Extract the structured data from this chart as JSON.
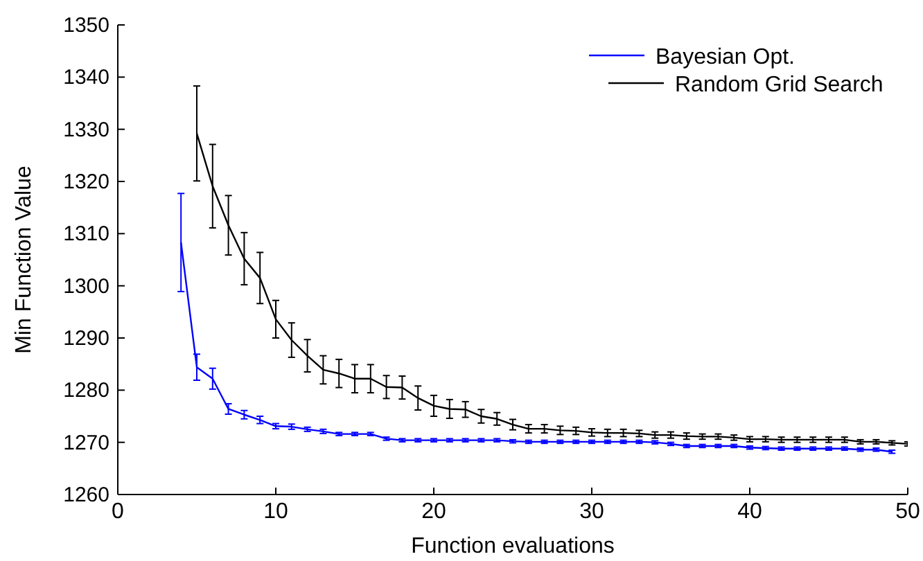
{
  "chart_data": {
    "type": "line",
    "xlabel": "Function evaluations",
    "ylabel": "Min Function Value",
    "xlim": [
      0,
      50
    ],
    "xticks": [
      0,
      10,
      20,
      30,
      40,
      50
    ],
    "ylim": [
      1260,
      1350
    ],
    "yticks": [
      1260,
      1270,
      1280,
      1290,
      1300,
      1310,
      1320,
      1330,
      1340,
      1350
    ],
    "grid": false,
    "legend": "top right",
    "marker": "none",
    "line_style": "solid",
    "series": [
      {
        "name": "Bayesian Opt.",
        "color": "#0000ff",
        "x": [
          4,
          5,
          6,
          7,
          8,
          9,
          10,
          11,
          12,
          13,
          14,
          15,
          16,
          17,
          18,
          19,
          20,
          21,
          22,
          23,
          24,
          25,
          26,
          27,
          28,
          29,
          30,
          31,
          32,
          33,
          34,
          35,
          36,
          37,
          38,
          39,
          40,
          41,
          42,
          43,
          44,
          45,
          46,
          47,
          48,
          49
        ],
        "values": [
          1308.3,
          1284.4,
          1282.2,
          1276.4,
          1275.3,
          1274.3,
          1273.1,
          1273.0,
          1272.5,
          1272.1,
          1271.6,
          1271.6,
          1271.6,
          1270.7,
          1270.4,
          1270.4,
          1270.4,
          1270.4,
          1270.4,
          1270.4,
          1270.4,
          1270.2,
          1270.1,
          1270.1,
          1270.1,
          1270.1,
          1270.1,
          1270.1,
          1270.1,
          1270.1,
          1270.0,
          1269.7,
          1269.3,
          1269.3,
          1269.3,
          1269.3,
          1269.0,
          1268.9,
          1268.8,
          1268.8,
          1268.8,
          1268.8,
          1268.8,
          1268.6,
          1268.6,
          1268.2
        ],
        "errors": [
          9.4,
          2.5,
          2,
          1,
          0.8,
          0.7,
          0.5,
          0.5,
          0.4,
          0.4,
          0.3,
          0.3,
          0.3,
          0.3,
          0.3,
          0.3,
          0.3,
          0.3,
          0.3,
          0.3,
          0.3,
          0.3,
          0.3,
          0.3,
          0.3,
          0.3,
          0.3,
          0.3,
          0.3,
          0.3,
          0.3,
          0.3,
          0.3,
          0.3,
          0.3,
          0.3,
          0.3,
          0.3,
          0.3,
          0.3,
          0.3,
          0.3,
          0.3,
          0.3,
          0.3,
          0.3
        ]
      },
      {
        "name": "Random Grid Search",
        "color": "#000000",
        "x": [
          5,
          6,
          7,
          8,
          9,
          10,
          11,
          12,
          13,
          14,
          15,
          16,
          17,
          18,
          19,
          20,
          21,
          22,
          23,
          24,
          25,
          26,
          27,
          28,
          29,
          30,
          31,
          32,
          33,
          34,
          35,
          36,
          37,
          38,
          39,
          40,
          41,
          42,
          43,
          44,
          45,
          46,
          47,
          48,
          49,
          50
        ],
        "values": [
          1329.2,
          1319.1,
          1311.6,
          1305.2,
          1301.5,
          1293.6,
          1289.6,
          1286.6,
          1283.9,
          1283.2,
          1282.2,
          1282.2,
          1280.6,
          1280.5,
          1278.5,
          1277.0,
          1276.4,
          1276.3,
          1275.0,
          1274.5,
          1273.4,
          1272.6,
          1272.6,
          1272.3,
          1272.2,
          1271.9,
          1271.8,
          1271.8,
          1271.7,
          1271.4,
          1271.4,
          1271.2,
          1271.1,
          1271.1,
          1270.9,
          1270.6,
          1270.6,
          1270.5,
          1270.5,
          1270.5,
          1270.5,
          1270.5,
          1270.1,
          1270.1,
          1269.9,
          1269.7
        ],
        "errors": [
          9.1,
          8,
          5.7,
          5,
          4.9,
          3.6,
          3.3,
          3.1,
          2.7,
          2.7,
          2.7,
          2.7,
          2.2,
          2.2,
          2.3,
          2,
          1.8,
          1.5,
          1.3,
          1.2,
          1,
          0.8,
          0.8,
          0.8,
          0.7,
          0.7,
          0.7,
          0.7,
          0.6,
          0.6,
          0.6,
          0.6,
          0.5,
          0.5,
          0.5,
          0.5,
          0.5,
          0.5,
          0.5,
          0.5,
          0.5,
          0.5,
          0.4,
          0.4,
          0.4,
          0.4
        ]
      }
    ]
  }
}
